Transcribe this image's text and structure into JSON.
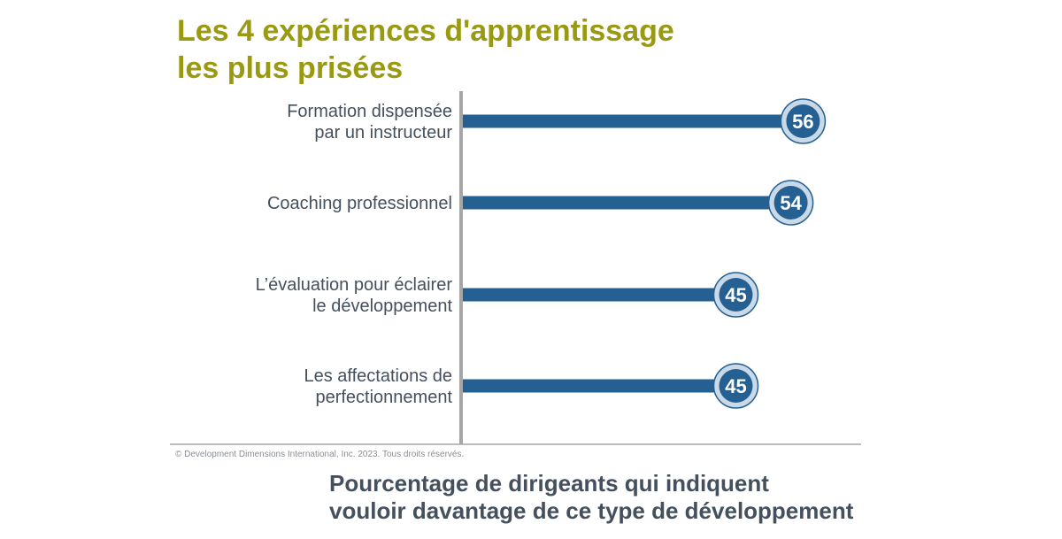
{
  "chart_data": {
    "type": "bar",
    "orientation": "horizontal",
    "title_lines": [
      "Les 4 expériences d'apprentissage",
      "les plus prisées"
    ],
    "categories": [
      [
        "Formation dispensée",
        "par un instructeur"
      ],
      [
        "Coaching professionnel"
      ],
      [
        "L’évaluation pour éclairer",
        "le développement"
      ],
      [
        "Les affectations de",
        "perfectionnement"
      ]
    ],
    "values": [
      56,
      54,
      45,
      45
    ],
    "value_labels": [
      "56",
      "54",
      "45",
      "45"
    ],
    "xlim": [
      0,
      65
    ],
    "grid": false,
    "xlabel_lines": [
      "Pourcentage de dirigeants qui indiquent",
      "vouloir davantage de ce type de développement"
    ]
  },
  "copyright": "© Development Dimensions International, Inc. 2023. Tous droits réservés.",
  "colors": {
    "title": "#9a9a12",
    "bar": "#246092",
    "bubble_ring": "#c9d9e8",
    "axis": "#a6a6a6",
    "text": "#44505e"
  }
}
